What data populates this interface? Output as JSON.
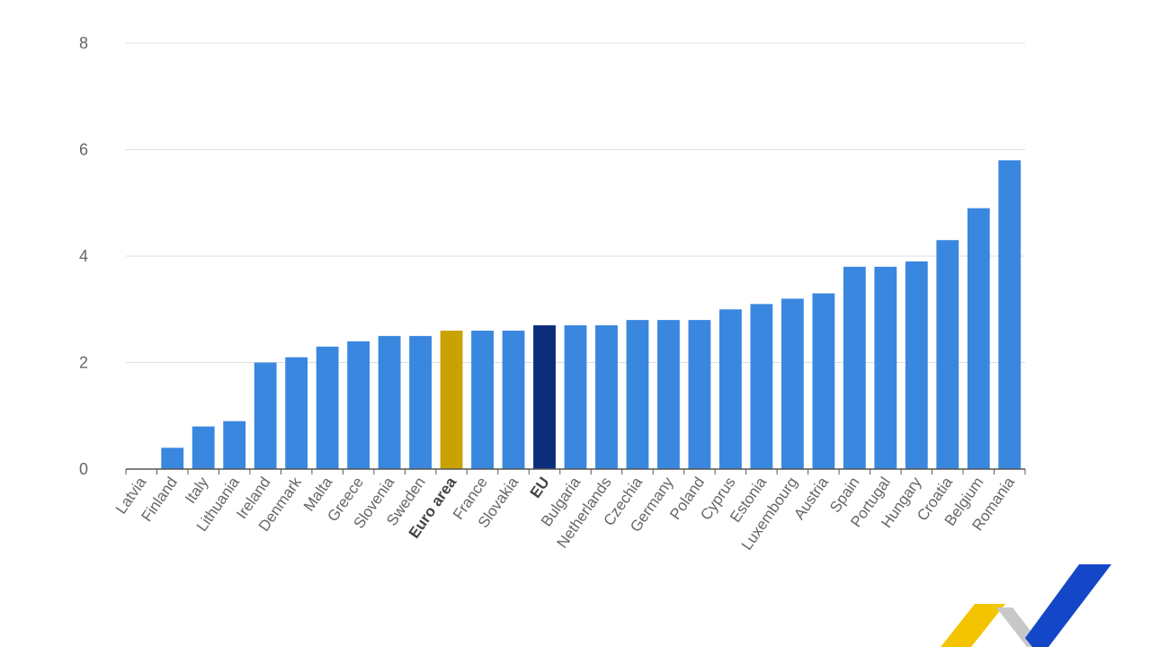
{
  "chart_data": {
    "type": "bar",
    "title": "",
    "xlabel": "",
    "ylabel": "",
    "ylim": [
      0,
      8
    ],
    "yticks": [
      0,
      2,
      4,
      6,
      8
    ],
    "grid": true,
    "legend": "none",
    "categories": [
      "Latvia",
      "Finland",
      "Italy",
      "Lithuania",
      "Ireland",
      "Denmark",
      "Malta",
      "Greece",
      "Slovenia",
      "Sweden",
      "Euro area",
      "France",
      "Slovakia",
      "EU",
      "Bulgaria",
      "Netherlands",
      "Czechia",
      "Germany",
      "Poland",
      "Cyprus",
      "Estonia",
      "Luxembourg",
      "Austria",
      "Spain",
      "Portugal",
      "Hungary",
      "Croatia",
      "Belgium",
      "Romania"
    ],
    "values": [
      0.0,
      0.4,
      0.8,
      0.9,
      2.0,
      2.1,
      2.3,
      2.4,
      2.5,
      2.5,
      2.6,
      2.6,
      2.6,
      2.7,
      2.7,
      2.7,
      2.8,
      2.8,
      2.8,
      3.0,
      3.1,
      3.2,
      3.3,
      3.8,
      3.8,
      3.9,
      4.3,
      4.9,
      5.8
    ],
    "highlight": {
      "Euro area": "#c9a200",
      "EU": "#0b2d7a"
    },
    "bold_labels": [
      "Euro area",
      "EU"
    ],
    "bar_color": "#3a87e0"
  },
  "logo": {
    "name": "brand-logo",
    "colors": [
      "#f5c400",
      "#c9c9c9",
      "#1447c8"
    ]
  }
}
